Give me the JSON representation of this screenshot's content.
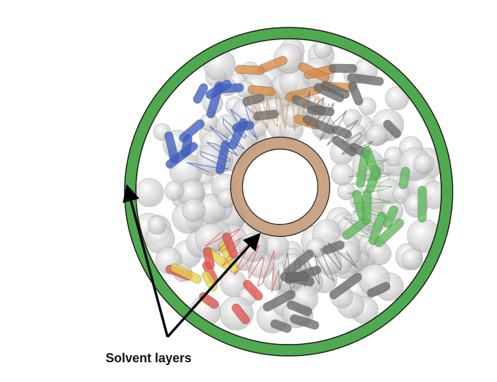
{
  "figure": {
    "caption": "Solvent layers",
    "colors": {
      "outer_layer": "#4faa4f",
      "inner_layer": "#c49a78",
      "ring_outline": "#1a1a1a",
      "arrow": "#000000",
      "protein_blue": "#3d5fc4",
      "protein_orange": "#d98a45",
      "protein_green": "#5fb85a",
      "protein_red": "#e0524a",
      "protein_yellow": "#e6d24a",
      "protein_gray": "#6b6b6b",
      "surface": "#d0d0d0"
    },
    "subunits": [
      {
        "name": "blue-subunit",
        "color": "#3d5fc4"
      },
      {
        "name": "orange-subunit",
        "color": "#d98a45"
      },
      {
        "name": "gray-top-subunit",
        "color": "#6b6b6b"
      },
      {
        "name": "green-subunit",
        "color": "#5fb85a"
      },
      {
        "name": "gray-bottom-subunit",
        "color": "#6b6b6b"
      },
      {
        "name": "red-yellow-subunit",
        "color": "#e0524a"
      }
    ]
  }
}
